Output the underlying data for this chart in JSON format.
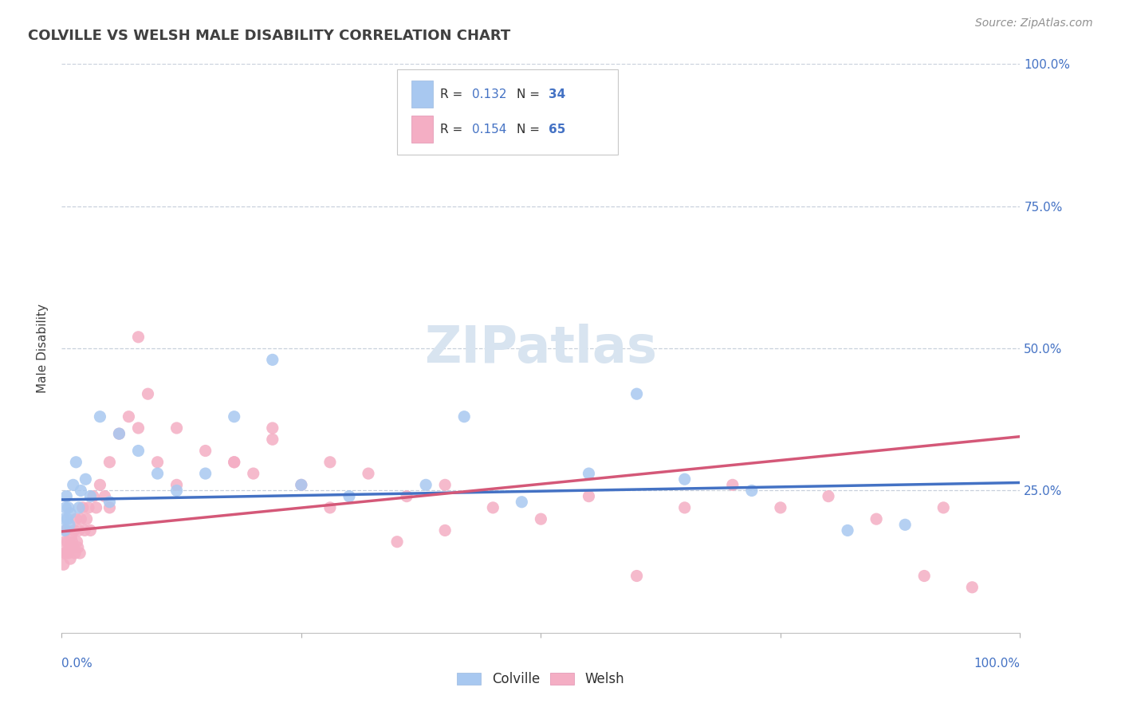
{
  "title": "COLVILLE VS WELSH MALE DISABILITY CORRELATION CHART",
  "source": "Source: ZipAtlas.com",
  "ylabel": "Male Disability",
  "colville_R": 0.132,
  "colville_N": 34,
  "welsh_R": 0.154,
  "welsh_N": 65,
  "colville_color": "#a8c8f0",
  "welsh_color": "#f4aec4",
  "colville_line_color": "#4472c4",
  "welsh_line_color": "#d45878",
  "title_color": "#404040",
  "stat_label_color": "#303030",
  "stat_value_color": "#4472c4",
  "right_axis_color": "#4472c4",
  "background_color": "#ffffff",
  "grid_color": "#c8d0dc",
  "watermark_color": "#d8e4f0",
  "colville_x": [
    0.002,
    0.003,
    0.004,
    0.005,
    0.006,
    0.007,
    0.008,
    0.009,
    0.012,
    0.015,
    0.018,
    0.02,
    0.025,
    0.03,
    0.04,
    0.05,
    0.06,
    0.08,
    0.1,
    0.12,
    0.15,
    0.18,
    0.22,
    0.25,
    0.3,
    0.38,
    0.42,
    0.48,
    0.55,
    0.6,
    0.65,
    0.72,
    0.82,
    0.88
  ],
  "colville_y": [
    0.2,
    0.18,
    0.22,
    0.24,
    0.2,
    0.22,
    0.19,
    0.21,
    0.26,
    0.3,
    0.22,
    0.25,
    0.27,
    0.24,
    0.38,
    0.23,
    0.35,
    0.32,
    0.28,
    0.25,
    0.28,
    0.38,
    0.48,
    0.26,
    0.24,
    0.26,
    0.38,
    0.23,
    0.28,
    0.42,
    0.27,
    0.25,
    0.18,
    0.19
  ],
  "welsh_x": [
    0.001,
    0.002,
    0.003,
    0.004,
    0.005,
    0.006,
    0.007,
    0.008,
    0.009,
    0.01,
    0.011,
    0.012,
    0.013,
    0.014,
    0.015,
    0.016,
    0.017,
    0.018,
    0.019,
    0.02,
    0.022,
    0.024,
    0.026,
    0.028,
    0.03,
    0.033,
    0.036,
    0.04,
    0.045,
    0.05,
    0.06,
    0.07,
    0.08,
    0.09,
    0.1,
    0.12,
    0.15,
    0.18,
    0.2,
    0.22,
    0.25,
    0.28,
    0.32,
    0.36,
    0.4,
    0.45,
    0.5,
    0.55,
    0.6,
    0.65,
    0.7,
    0.75,
    0.8,
    0.85,
    0.9,
    0.92,
    0.95,
    0.4,
    0.35,
    0.28,
    0.22,
    0.18,
    0.12,
    0.08,
    0.05
  ],
  "welsh_y": [
    0.14,
    0.12,
    0.16,
    0.14,
    0.18,
    0.16,
    0.14,
    0.15,
    0.13,
    0.17,
    0.16,
    0.15,
    0.18,
    0.14,
    0.2,
    0.16,
    0.15,
    0.18,
    0.14,
    0.2,
    0.22,
    0.18,
    0.2,
    0.22,
    0.18,
    0.24,
    0.22,
    0.26,
    0.24,
    0.22,
    0.35,
    0.38,
    0.52,
    0.42,
    0.3,
    0.36,
    0.32,
    0.3,
    0.28,
    0.34,
    0.26,
    0.3,
    0.28,
    0.24,
    0.26,
    0.22,
    0.2,
    0.24,
    0.1,
    0.22,
    0.26,
    0.22,
    0.24,
    0.2,
    0.1,
    0.22,
    0.08,
    0.18,
    0.16,
    0.22,
    0.36,
    0.3,
    0.26,
    0.36,
    0.3
  ],
  "colville_trend": [
    0.234,
    0.264
  ],
  "welsh_trend": [
    0.178,
    0.345
  ],
  "xlim": [
    0.0,
    1.0
  ],
  "ylim": [
    0.0,
    1.0
  ]
}
